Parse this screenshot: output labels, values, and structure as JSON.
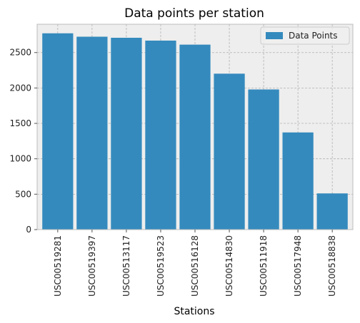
{
  "chart_data": {
    "type": "bar",
    "title": "Data points per station",
    "xlabel": "Stations",
    "ylabel": "",
    "categories": [
      "USC00519281",
      "USC00519397",
      "USC00513117",
      "USC00519523",
      "USC00516128",
      "USC00514830",
      "USC00511918",
      "USC00517948",
      "USC00518838"
    ],
    "series": [
      {
        "name": "Data Points",
        "values": [
          2772,
          2724,
          2709,
          2669,
          2612,
          2202,
          1979,
          1372,
          511
        ]
      }
    ],
    "ylim": [
      0,
      2900
    ],
    "yticks": [
      0,
      500,
      1000,
      1500,
      2000,
      2500
    ],
    "grid": true,
    "legend_position": "top-right",
    "colors": {
      "bar": "#348ABD",
      "background": "#EEEEEE",
      "grid": "#B2B2B2",
      "frame": "#BCBCBC"
    }
  }
}
